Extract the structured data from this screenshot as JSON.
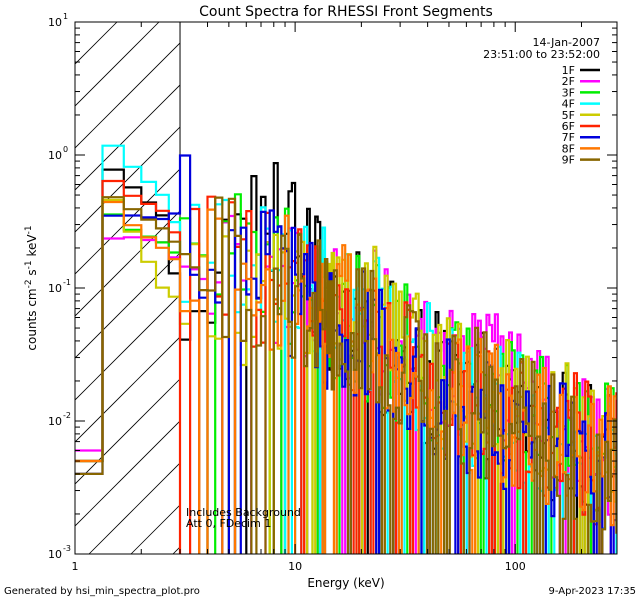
{
  "chart_data": {
    "type": "line",
    "title": "Count Spectra for RHESSI Front Segments",
    "xlabel": "Energy (keV)",
    "ylabel_parts": [
      "counts cm",
      "-2",
      " s",
      "-1",
      " keV",
      "-1"
    ],
    "xscale": "log",
    "yscale": "log",
    "xlim": [
      1.0,
      290
    ],
    "ylim": [
      0.001,
      10
    ],
    "x_ticks": [
      {
        "value": 1,
        "label": "1"
      },
      {
        "value": 10,
        "label": "10"
      },
      {
        "value": 100,
        "label": "100"
      }
    ],
    "y_ticks": [
      {
        "value": 0.001,
        "base": "10",
        "exp": "-3"
      },
      {
        "value": 0.01,
        "base": "10",
        "exp": "-2"
      },
      {
        "value": 0.1,
        "base": "10",
        "exp": "-1"
      },
      {
        "value": 1,
        "base": "10",
        "exp": "0"
      },
      {
        "value": 10,
        "base": "10",
        "exp": "1"
      }
    ],
    "hatched_region": [
      1.0,
      3.0
    ],
    "date": "14-Jan-2007",
    "time_range": "23:51:00 to 23:52:00",
    "legend_placement": "top-right",
    "annotations": [
      "Includes Background",
      "Att 0, FDecim 1"
    ],
    "series": [
      {
        "name": "1F",
        "color": "#000000",
        "anchors": [
          [
            1.3,
            0.95
          ],
          [
            1.6,
            0.7
          ],
          [
            2.5,
            0.35
          ],
          [
            3.0,
            0.08
          ],
          [
            10.5,
            0.45
          ],
          [
            11,
            0.12
          ],
          [
            20,
            0.05
          ],
          [
            40,
            0.02
          ],
          [
            100,
            0.01
          ],
          [
            290,
            0.005
          ]
        ]
      },
      {
        "name": "2F",
        "color": "#ff00ff",
        "anchors": [
          [
            1.3,
            0.21
          ],
          [
            1.6,
            0.25
          ],
          [
            2.5,
            0.22
          ],
          [
            3.0,
            0.15
          ],
          [
            10,
            0.12
          ],
          [
            20,
            0.06
          ],
          [
            40,
            0.035
          ],
          [
            100,
            0.015
          ],
          [
            290,
            0.006
          ]
        ]
      },
      {
        "name": "3F",
        "color": "#00ee00",
        "anchors": [
          [
            1.3,
            0.5
          ],
          [
            1.6,
            0.3
          ],
          [
            2.5,
            0.22
          ],
          [
            3.0,
            0.17
          ],
          [
            10,
            0.12
          ],
          [
            20,
            0.05
          ],
          [
            40,
            0.025
          ],
          [
            100,
            0.012
          ],
          [
            290,
            0.005
          ]
        ]
      },
      {
        "name": "4F",
        "color": "#00ffff",
        "anchors": [
          [
            1.3,
            1.6
          ],
          [
            1.6,
            1.0
          ],
          [
            2.5,
            0.5
          ],
          [
            3.0,
            0.25
          ],
          [
            10,
            0.12
          ],
          [
            20,
            0.06
          ],
          [
            40,
            0.025
          ],
          [
            100,
            0.01
          ],
          [
            290,
            0.005
          ]
        ]
      },
      {
        "name": "5F",
        "color": "#cccc00",
        "anchors": [
          [
            1.3,
            0.6
          ],
          [
            1.6,
            0.4
          ],
          [
            2.5,
            0.1
          ],
          [
            3.0,
            0.08
          ],
          [
            10,
            0.1
          ],
          [
            20,
            0.07
          ],
          [
            40,
            0.03
          ],
          [
            100,
            0.012
          ],
          [
            290,
            0.005
          ]
        ]
      },
      {
        "name": "6F",
        "color": "#ff2200",
        "anchors": [
          [
            1.3,
            0.85
          ],
          [
            1.6,
            0.55
          ],
          [
            2.5,
            0.38
          ],
          [
            3.0,
            0.22
          ],
          [
            10,
            0.09
          ],
          [
            20,
            0.045
          ],
          [
            40,
            0.022
          ],
          [
            100,
            0.011
          ],
          [
            290,
            0.005
          ]
        ]
      },
      {
        "name": "7F",
        "color": "#0000dd",
        "anchors": [
          [
            1.3,
            0.33
          ],
          [
            1.6,
            0.36
          ],
          [
            2.5,
            0.33
          ],
          [
            3.0,
            0.38
          ],
          [
            10,
            0.08
          ],
          [
            20,
            0.04
          ],
          [
            40,
            0.02
          ],
          [
            100,
            0.009
          ],
          [
            290,
            0.004
          ]
        ]
      },
      {
        "name": "8F",
        "color": "#ff7700",
        "anchors": [
          [
            1.3,
            0.7
          ],
          [
            1.6,
            0.35
          ],
          [
            2.5,
            0.2
          ],
          [
            3.0,
            0.15
          ],
          [
            10,
            0.1
          ],
          [
            20,
            0.05
          ],
          [
            40,
            0.022
          ],
          [
            100,
            0.01
          ],
          [
            290,
            0.005
          ]
        ]
      },
      {
        "name": "9F",
        "color": "#886600",
        "anchors": [
          [
            1.3,
            0.55
          ],
          [
            1.6,
            0.45
          ],
          [
            2.5,
            0.28
          ],
          [
            3.0,
            0.2
          ],
          [
            10,
            0.09
          ],
          [
            20,
            0.045
          ],
          [
            40,
            0.022
          ],
          [
            100,
            0.01
          ],
          [
            290,
            0.004
          ]
        ]
      }
    ]
  },
  "footer": {
    "generated_by": "Generated by hsi_min_spectra_plot.pro",
    "timestamp": "9-Apr-2023 17:35"
  }
}
